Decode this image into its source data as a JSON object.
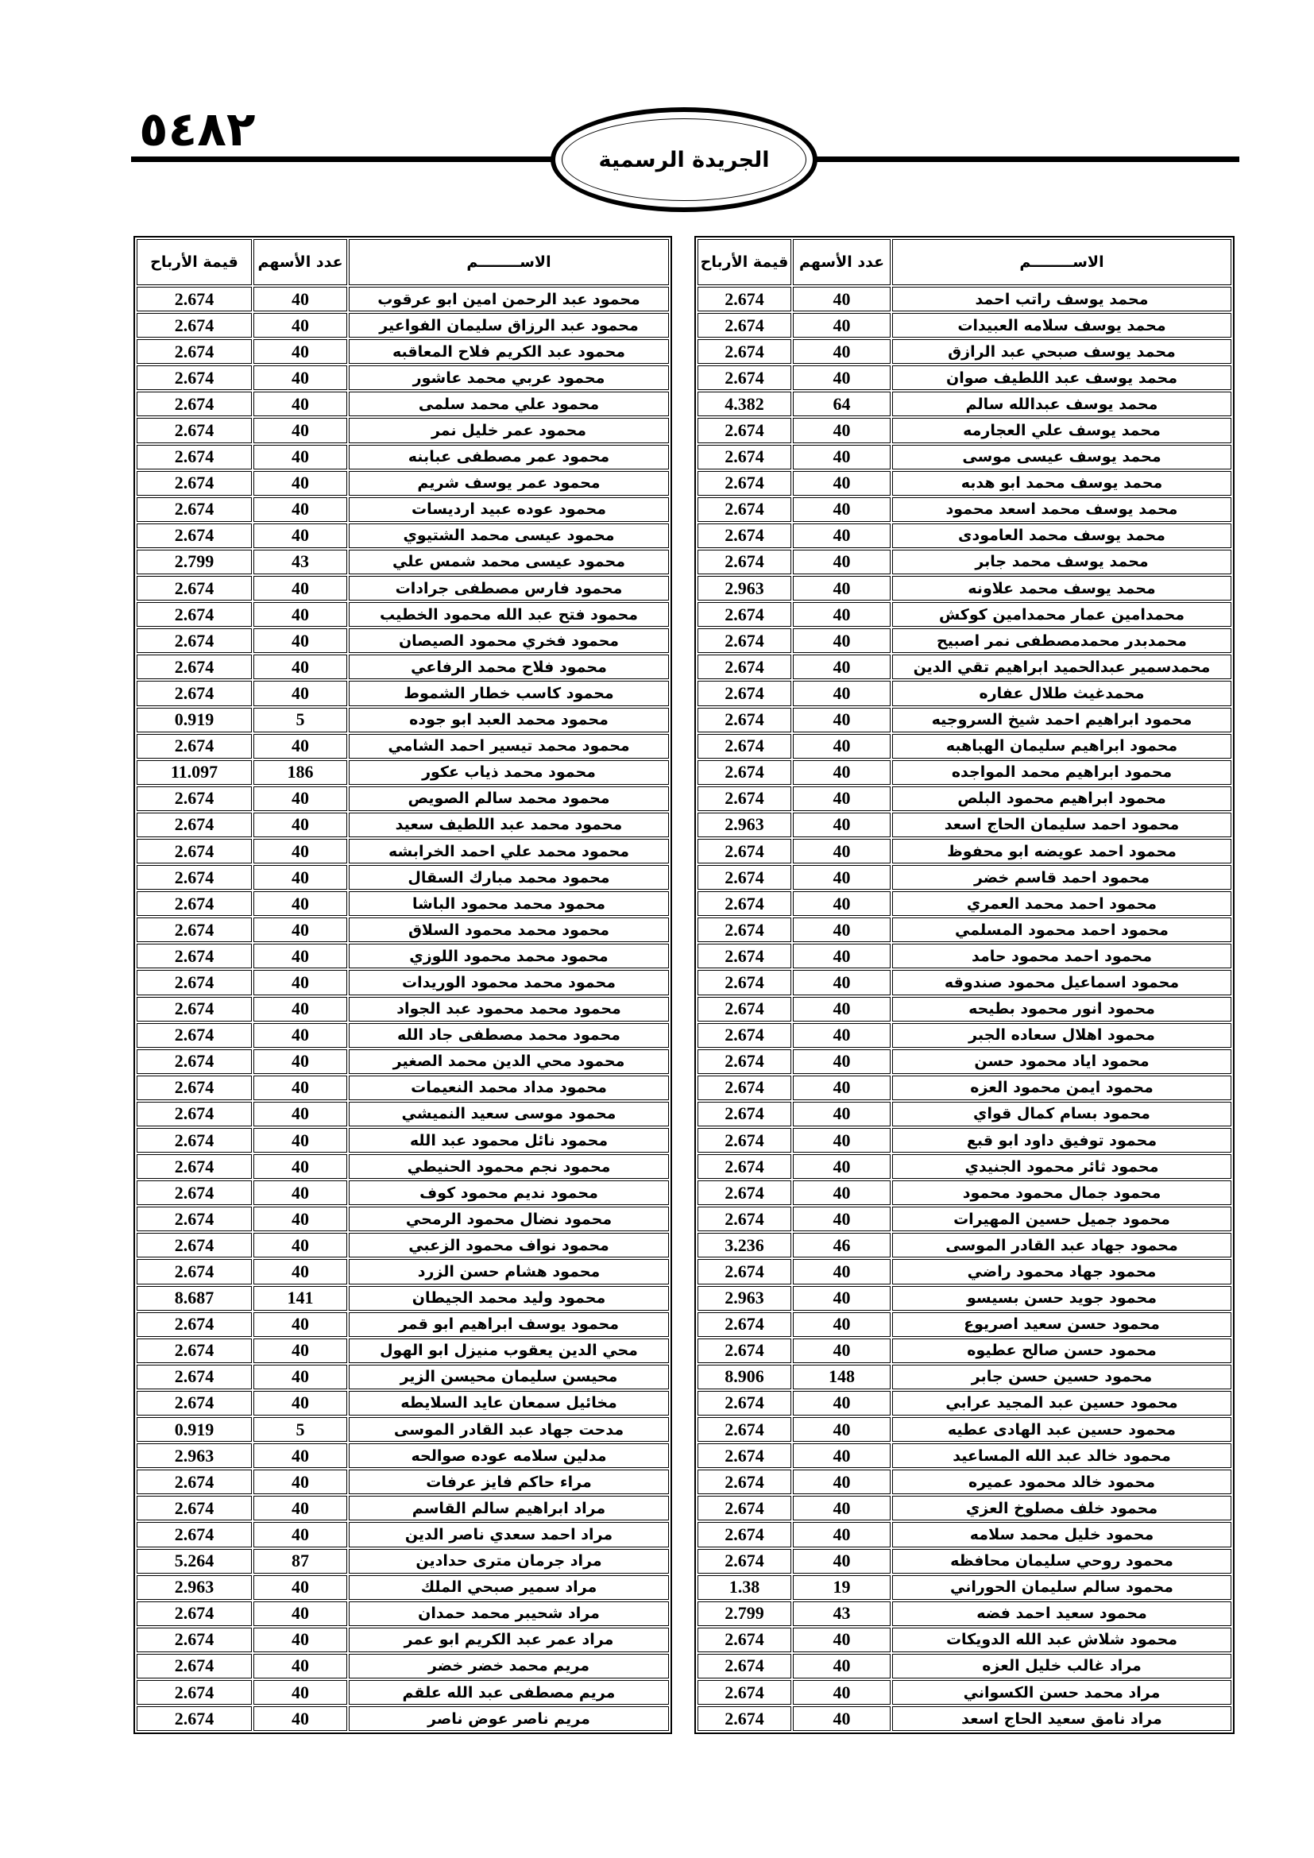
{
  "header": {
    "page_number": "٥٤٨٢",
    "title": "الجريدة الرسمية"
  },
  "tables": [
    {
      "columns": {
        "name": "الاســــــــم",
        "shares": "عدد الأسهم",
        "profit": "قيمة الأرباح"
      },
      "rows": [
        {
          "name": "محمد يوسف راتب احمد",
          "shares": "40",
          "profit": "2.674"
        },
        {
          "name": "محمد يوسف سلامه العبيدات",
          "shares": "40",
          "profit": "2.674"
        },
        {
          "name": "محمد يوسف صبحي عبد الرازق",
          "shares": "40",
          "profit": "2.674"
        },
        {
          "name": "محمد يوسف عبد اللطيف صوان",
          "shares": "40",
          "profit": "2.674"
        },
        {
          "name": "محمد يوسف عبدالله سالم",
          "shares": "64",
          "profit": "4.382"
        },
        {
          "name": "محمد يوسف علي العجارمه",
          "shares": "40",
          "profit": "2.674"
        },
        {
          "name": "محمد يوسف عيسى موسى",
          "shares": "40",
          "profit": "2.674"
        },
        {
          "name": "محمد يوسف محمد ابو هدبه",
          "shares": "40",
          "profit": "2.674"
        },
        {
          "name": "محمد يوسف محمد اسعد محمود",
          "shares": "40",
          "profit": "2.674"
        },
        {
          "name": "محمد يوسف محمد العامودى",
          "shares": "40",
          "profit": "2.674"
        },
        {
          "name": "محمد يوسف محمد جابر",
          "shares": "40",
          "profit": "2.674"
        },
        {
          "name": "محمد يوسف محمد علاونه",
          "shares": "40",
          "profit": "2.963"
        },
        {
          "name": "محمدامين عمار محمدامين كوكش",
          "shares": "40",
          "profit": "2.674"
        },
        {
          "name": "محمدبدر محمدمصطفى نمر اصبيح",
          "shares": "40",
          "profit": "2.674"
        },
        {
          "name": "محمدسمير عبدالحميد ابراهيم تقي الدين",
          "shares": "40",
          "profit": "2.674"
        },
        {
          "name": "محمدغيث طلال عفاره",
          "shares": "40",
          "profit": "2.674"
        },
        {
          "name": "محمود ابراهيم احمد شيخ السروجيه",
          "shares": "40",
          "profit": "2.674"
        },
        {
          "name": "محمود ابراهيم سليمان الهباهبه",
          "shares": "40",
          "profit": "2.674"
        },
        {
          "name": "محمود ابراهيم محمد المواجده",
          "shares": "40",
          "profit": "2.674"
        },
        {
          "name": "محمود ابراهيم محمود البلص",
          "shares": "40",
          "profit": "2.674"
        },
        {
          "name": "محمود احمد سليمان الحاج اسعد",
          "shares": "40",
          "profit": "2.963"
        },
        {
          "name": "محمود احمد عويضه ابو محفوظ",
          "shares": "40",
          "profit": "2.674"
        },
        {
          "name": "محمود احمد قاسم خضر",
          "shares": "40",
          "profit": "2.674"
        },
        {
          "name": "محمود احمد محمد العمري",
          "shares": "40",
          "profit": "2.674"
        },
        {
          "name": "محمود احمد محمود المسلمي",
          "shares": "40",
          "profit": "2.674"
        },
        {
          "name": "محمود احمد محمود حامد",
          "shares": "40",
          "profit": "2.674"
        },
        {
          "name": "محمود اسماعيل محمود صندوقه",
          "shares": "40",
          "profit": "2.674"
        },
        {
          "name": "محمود انور محمود بطيحه",
          "shares": "40",
          "profit": "2.674"
        },
        {
          "name": "محمود اهلال سعاده الجبر",
          "shares": "40",
          "profit": "2.674"
        },
        {
          "name": "محمود اياد محمود حسن",
          "shares": "40",
          "profit": "2.674"
        },
        {
          "name": "محمود ايمن محمود العزه",
          "shares": "40",
          "profit": "2.674"
        },
        {
          "name": "محمود بسام كمال قواي",
          "shares": "40",
          "profit": "2.674"
        },
        {
          "name": "محمود توفيق داود ابو قبع",
          "shares": "40",
          "profit": "2.674"
        },
        {
          "name": "محمود ثائر محمود الجنيدي",
          "shares": "40",
          "profit": "2.674"
        },
        {
          "name": "محمود جمال محمود محمود",
          "shares": "40",
          "profit": "2.674"
        },
        {
          "name": "محمود جميل حسين المهيرات",
          "shares": "40",
          "profit": "2.674"
        },
        {
          "name": "محمود جهاد عبد القادر الموسى",
          "shares": "46",
          "profit": "3.236"
        },
        {
          "name": "محمود جهاد محمود راضي",
          "shares": "40",
          "profit": "2.674"
        },
        {
          "name": "محمود جويد حسن بسيسو",
          "shares": "40",
          "profit": "2.963"
        },
        {
          "name": "محمود حسن سعيد اصريوع",
          "shares": "40",
          "profit": "2.674"
        },
        {
          "name": "محمود حسن صالح عطيوه",
          "shares": "40",
          "profit": "2.674"
        },
        {
          "name": "محمود حسين حسن جابر",
          "shares": "148",
          "profit": "8.906"
        },
        {
          "name": "محمود حسين عبد المجيد عرابي",
          "shares": "40",
          "profit": "2.674"
        },
        {
          "name": "محمود حسين عبد الهادى عطيه",
          "shares": "40",
          "profit": "2.674"
        },
        {
          "name": "محمود خالد عبد الله المساعيد",
          "shares": "40",
          "profit": "2.674"
        },
        {
          "name": "محمود خالد محمود عميره",
          "shares": "40",
          "profit": "2.674"
        },
        {
          "name": "محمود خلف مصلوخ العزي",
          "shares": "40",
          "profit": "2.674"
        },
        {
          "name": "محمود خليل محمد سلامه",
          "shares": "40",
          "profit": "2.674"
        },
        {
          "name": "محمود روحي سليمان محافظه",
          "shares": "40",
          "profit": "2.674"
        },
        {
          "name": "محمود سالم سليمان الحوراني",
          "shares": "19",
          "profit": "1.38"
        },
        {
          "name": "محمود سعيد احمد فضه",
          "shares": "43",
          "profit": "2.799"
        },
        {
          "name": "محمود شلاش عبد الله الدويكات",
          "shares": "40",
          "profit": "2.674"
        },
        {
          "name": "مراد غالب خليل العزه",
          "shares": "40",
          "profit": "2.674"
        },
        {
          "name": "مراد محمد حسن الكسواني",
          "shares": "40",
          "profit": "2.674"
        },
        {
          "name": "مراد نامق سعيد الحاج اسعد",
          "shares": "40",
          "profit": "2.674"
        }
      ]
    },
    {
      "columns": {
        "name": "الاســــــــم",
        "shares": "عدد الأسهم",
        "profit": "قيمة الأرباح"
      },
      "rows": [
        {
          "name": "محمود عبد الرحمن امين ابو عرقوب",
          "shares": "40",
          "profit": "2.674"
        },
        {
          "name": "محمود عبد الرزاق سليمان الفواعير",
          "shares": "40",
          "profit": "2.674"
        },
        {
          "name": "محمود عبد الكريم فلاح المعاقبه",
          "shares": "40",
          "profit": "2.674"
        },
        {
          "name": "محمود عربي محمد عاشور",
          "shares": "40",
          "profit": "2.674"
        },
        {
          "name": "محمود علي محمد سلمى",
          "shares": "40",
          "profit": "2.674"
        },
        {
          "name": "محمود عمر خليل نمر",
          "shares": "40",
          "profit": "2.674"
        },
        {
          "name": "محمود عمر مصطفى عبابنه",
          "shares": "40",
          "profit": "2.674"
        },
        {
          "name": "محمود عمر يوسف شريم",
          "shares": "40",
          "profit": "2.674"
        },
        {
          "name": "محمود عوده عبيد ارديسات",
          "shares": "40",
          "profit": "2.674"
        },
        {
          "name": "محمود عيسى محمد الشتيوي",
          "shares": "40",
          "profit": "2.674"
        },
        {
          "name": "محمود عيسى محمد شمس علي",
          "shares": "43",
          "profit": "2.799"
        },
        {
          "name": "محمود فارس مصطفى جرادات",
          "shares": "40",
          "profit": "2.674"
        },
        {
          "name": "محمود فتح عبد الله محمود الخطيب",
          "shares": "40",
          "profit": "2.674"
        },
        {
          "name": "محمود فخري محمود الصيصان",
          "shares": "40",
          "profit": "2.674"
        },
        {
          "name": "محمود فلاح محمد الرفاعي",
          "shares": "40",
          "profit": "2.674"
        },
        {
          "name": "محمود كاسب خطار الشموط",
          "shares": "40",
          "profit": "2.674"
        },
        {
          "name": "محمود محمد العبد ابو جوده",
          "shares": "5",
          "profit": "0.919"
        },
        {
          "name": "محمود محمد تيسير احمد الشامي",
          "shares": "40",
          "profit": "2.674"
        },
        {
          "name": "محمود محمد ذياب عكور",
          "shares": "186",
          "profit": "11.097"
        },
        {
          "name": "محمود محمد سالم الصويص",
          "shares": "40",
          "profit": "2.674"
        },
        {
          "name": "محمود محمد عبد اللطيف سعيد",
          "shares": "40",
          "profit": "2.674"
        },
        {
          "name": "محمود محمد علي احمد الخرابشه",
          "shares": "40",
          "profit": "2.674"
        },
        {
          "name": "محمود محمد مبارك السقال",
          "shares": "40",
          "profit": "2.674"
        },
        {
          "name": "محمود محمد محمود الباشا",
          "shares": "40",
          "profit": "2.674"
        },
        {
          "name": "محمود محمد محمود السلاق",
          "shares": "40",
          "profit": "2.674"
        },
        {
          "name": "محمود محمد محمود اللوزي",
          "shares": "40",
          "profit": "2.674"
        },
        {
          "name": "محمود محمد محمود الوريدات",
          "shares": "40",
          "profit": "2.674"
        },
        {
          "name": "محمود محمد محمود عبد الجواد",
          "shares": "40",
          "profit": "2.674"
        },
        {
          "name": "محمود محمد مصطفى جاد الله",
          "shares": "40",
          "profit": "2.674"
        },
        {
          "name": "محمود محي الدين محمد الصغير",
          "shares": "40",
          "profit": "2.674"
        },
        {
          "name": "محمود مداد محمد النعيمات",
          "shares": "40",
          "profit": "2.674"
        },
        {
          "name": "محمود موسى سعيد النميشي",
          "shares": "40",
          "profit": "2.674"
        },
        {
          "name": "محمود نائل محمود عبد الله",
          "shares": "40",
          "profit": "2.674"
        },
        {
          "name": "محمود نجم محمود الحنيطي",
          "shares": "40",
          "profit": "2.674"
        },
        {
          "name": "محمود نديم محمود كوف",
          "shares": "40",
          "profit": "2.674"
        },
        {
          "name": "محمود نضال محمود الرمحي",
          "shares": "40",
          "profit": "2.674"
        },
        {
          "name": "محمود نواف محمود الزعبي",
          "shares": "40",
          "profit": "2.674"
        },
        {
          "name": "محمود هشام حسن الزرد",
          "shares": "40",
          "profit": "2.674"
        },
        {
          "name": "محمود وليد محمد الجيطان",
          "shares": "141",
          "profit": "8.687"
        },
        {
          "name": "محمود يوسف ابراهيم ابو قمر",
          "shares": "40",
          "profit": "2.674"
        },
        {
          "name": "محي الدين يعقوب منيزل ابو الهول",
          "shares": "40",
          "profit": "2.674"
        },
        {
          "name": "محيسن سليمان محيسن الزير",
          "shares": "40",
          "profit": "2.674"
        },
        {
          "name": "مخائيل سمعان عايد السلايطه",
          "shares": "40",
          "profit": "2.674"
        },
        {
          "name": "مدحت جهاد عبد القادر الموسى",
          "shares": "5",
          "profit": "0.919"
        },
        {
          "name": "مدلين سلامه عوده صوالحه",
          "shares": "40",
          "profit": "2.963"
        },
        {
          "name": "مراء حاكم فايز عرفات",
          "shares": "40",
          "profit": "2.674"
        },
        {
          "name": "مراد ابراهيم سالم القاسم",
          "shares": "40",
          "profit": "2.674"
        },
        {
          "name": "مراد احمد سعدي ناصر الدين",
          "shares": "40",
          "profit": "2.674"
        },
        {
          "name": "مراد جرمان مترى حدادين",
          "shares": "87",
          "profit": "5.264"
        },
        {
          "name": "مراد سمير صبحي الملك",
          "shares": "40",
          "profit": "2.963"
        },
        {
          "name": "مراد شحيبر محمد حمدان",
          "shares": "40",
          "profit": "2.674"
        },
        {
          "name": "مراد عمر عبد الكريم ابو عمر",
          "shares": "40",
          "profit": "2.674"
        },
        {
          "name": "مريم محمد خضر خضر",
          "shares": "40",
          "profit": "2.674"
        },
        {
          "name": "مريم مصطفى عبد الله علقم",
          "shares": "40",
          "profit": "2.674"
        },
        {
          "name": "مريم ناصر عوض ناصر",
          "shares": "40",
          "profit": "2.674"
        }
      ]
    }
  ]
}
